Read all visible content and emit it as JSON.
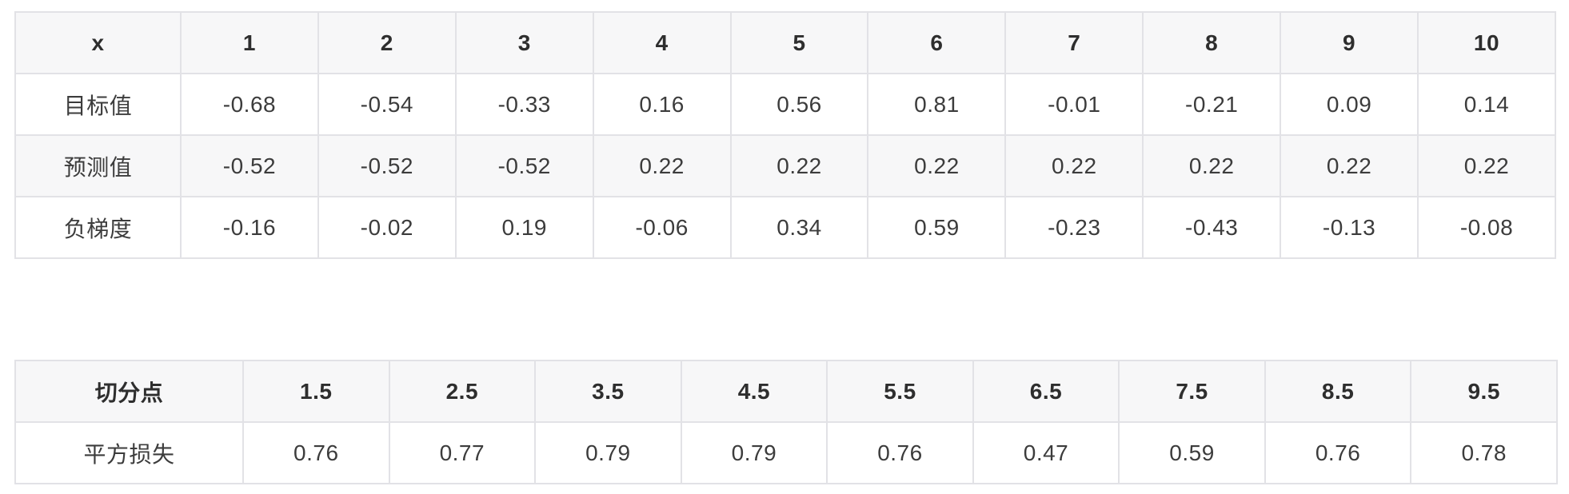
{
  "table1": {
    "name": "gradient-table",
    "header": [
      "x",
      "1",
      "2",
      "3",
      "4",
      "5",
      "6",
      "7",
      "8",
      "9",
      "10"
    ],
    "rows": [
      {
        "label": "目标值",
        "values": [
          "-0.68",
          "-0.54",
          "-0.33",
          "0.16",
          "0.56",
          "0.81",
          "-0.01",
          "-0.21",
          "0.09",
          "0.14"
        ]
      },
      {
        "label": "预测值",
        "values": [
          "-0.52",
          "-0.52",
          "-0.52",
          "0.22",
          "0.22",
          "0.22",
          "0.22",
          "0.22",
          "0.22",
          "0.22"
        ]
      },
      {
        "label": "负梯度",
        "values": [
          "-0.16",
          "-0.02",
          "0.19",
          "-0.06",
          "0.34",
          "0.59",
          "-0.23",
          "-0.43",
          "-0.13",
          "-0.08"
        ]
      }
    ]
  },
  "table2": {
    "name": "split-loss-table",
    "header": [
      "切分点",
      "1.5",
      "2.5",
      "3.5",
      "4.5",
      "5.5",
      "6.5",
      "7.5",
      "8.5",
      "9.5"
    ],
    "rows": [
      {
        "label": "平方损失",
        "values": [
          "0.76",
          "0.77",
          "0.79",
          "0.79",
          "0.76",
          "0.47",
          "0.59",
          "0.76",
          "0.78"
        ]
      }
    ]
  },
  "colors": {
    "header_bg": "#f7f7f8",
    "stripe_bg": "#f7f7f8",
    "border": "#e2e2e6",
    "header_text": "#2e2e2e",
    "body_text": "#3c3c3c",
    "page_bg": "#ffffff"
  }
}
